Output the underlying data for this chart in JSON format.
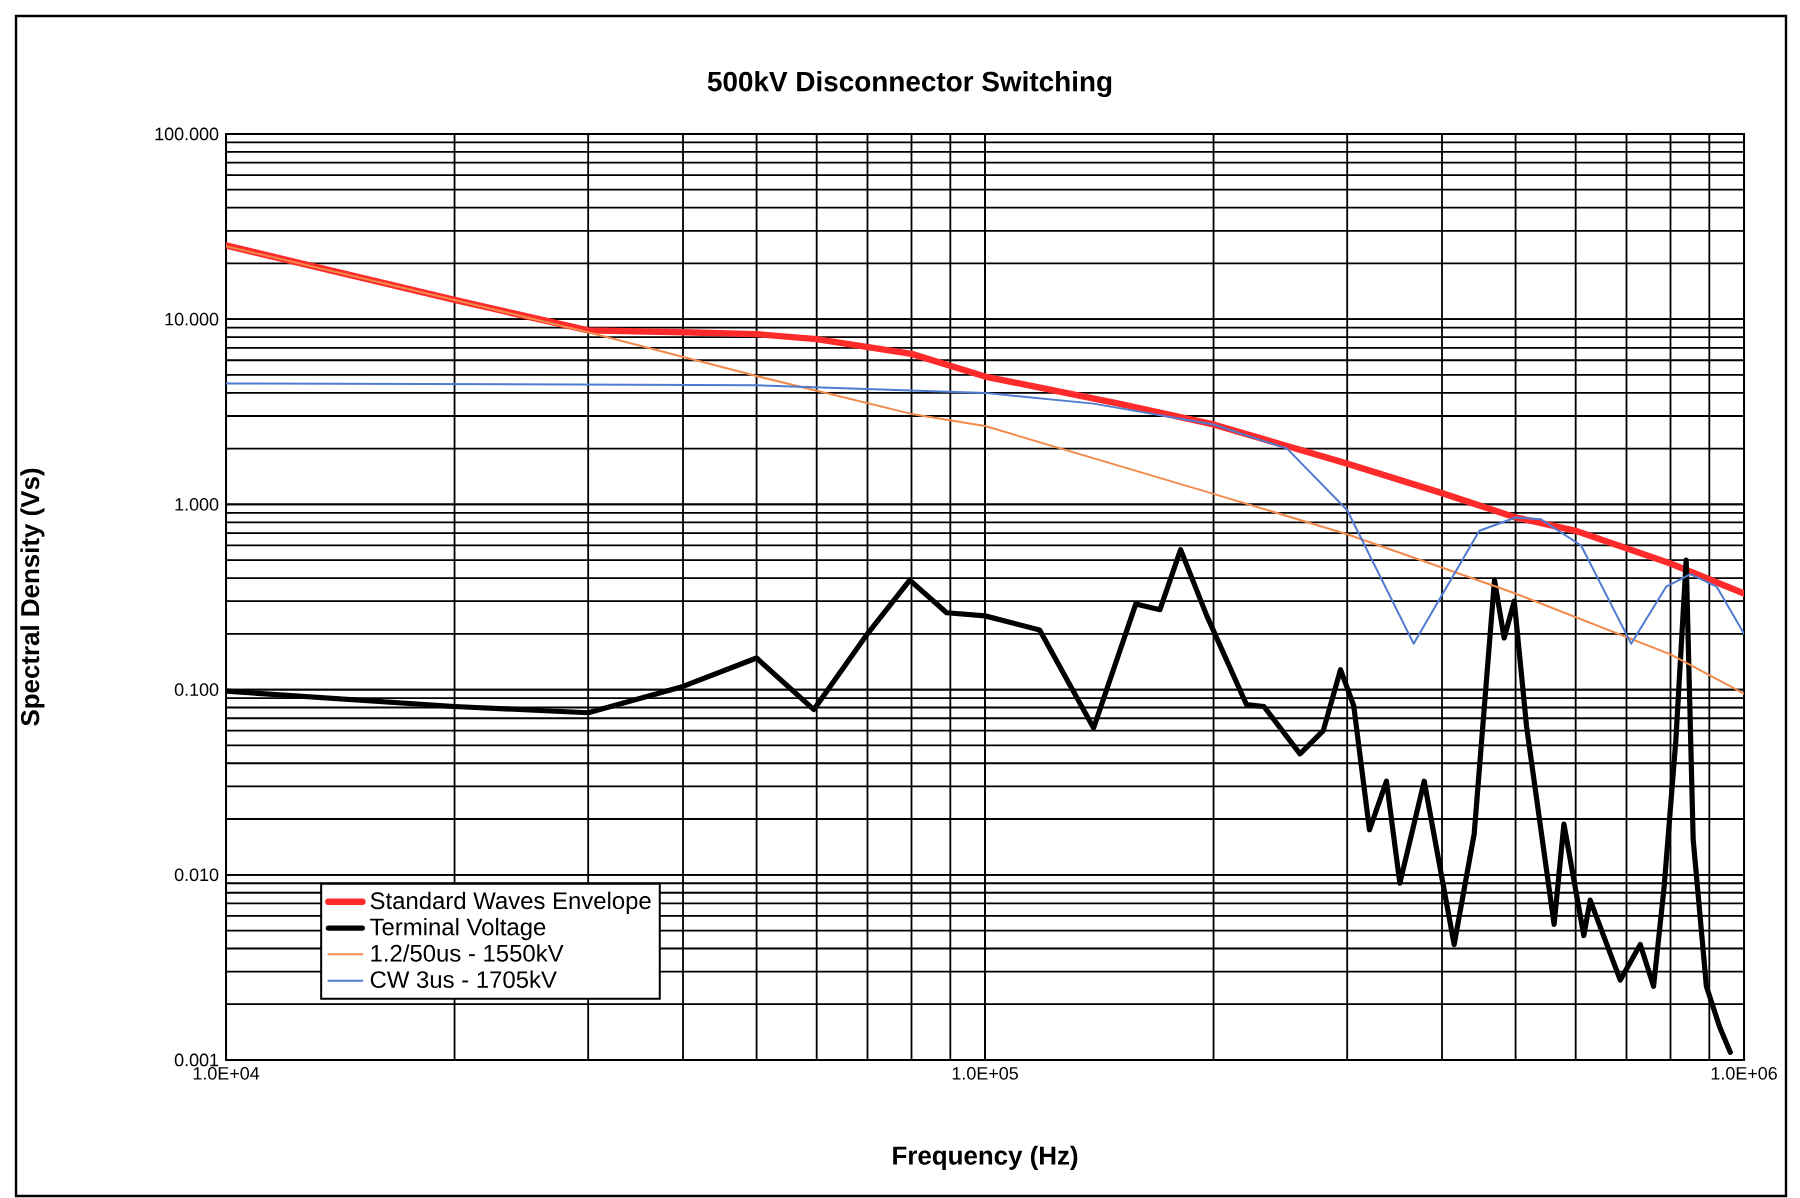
{
  "chart_data": {
    "type": "line",
    "title": "500kV Disconnector Switching",
    "xlabel": "Frequency (Hz)",
    "ylabel": "Spectral Density (Vs)",
    "log": "xy",
    "grid": true,
    "legend": "bottom left",
    "marker": "none",
    "xlim": [
      10000,
      1000000
    ],
    "ylim": [
      0.001,
      100
    ],
    "xticks": [
      {
        "value": 10000,
        "label": "1.0E+04"
      },
      {
        "value": 100000,
        "label": "1.0E+05"
      },
      {
        "value": 1000000,
        "label": "1.0E+06"
      }
    ],
    "yticks": [
      {
        "value": 0.001,
        "label": "0.001"
      },
      {
        "value": 0.01,
        "label": "0.010"
      },
      {
        "value": 0.1,
        "label": "0.100"
      },
      {
        "value": 1,
        "label": "1.000"
      },
      {
        "value": 10,
        "label": "10.000"
      },
      {
        "value": 100,
        "label": "100.000"
      }
    ],
    "series": [
      {
        "name": "Standard Waves Envelope",
        "color": "#ff2a2a",
        "x": [
          10000,
          20000,
          30000,
          40000,
          50000,
          60000,
          80000,
          100000,
          150000,
          200000,
          300000,
          400000,
          500000,
          600000,
          800000,
          1000000
        ],
        "values": [
          25,
          12.7,
          8.7,
          8.5,
          8.3,
          7.8,
          6.5,
          4.9,
          3.5,
          2.7,
          1.66,
          1.15,
          0.85,
          0.72,
          0.48,
          0.33
        ]
      },
      {
        "name": "Terminal Voltage",
        "color": "#000000",
        "x": [
          10000,
          20000,
          30000,
          40000,
          50000,
          59500,
          70000,
          79600,
          89000,
          100000,
          118000,
          139000,
          158000,
          170000,
          181000,
          196000,
          221000,
          233000,
          260000,
          279000,
          294000,
          306000,
          321000,
          338000,
          352000,
          379000,
          415000,
          441000,
          469000,
          483000,
          498000,
          517000,
          562000,
          579000,
          615000,
          627000,
          687000,
          730000,
          760000,
          785000,
          813000,
          839000,
          857000,
          892000,
          929000,
          959000
        ],
        "values": [
          0.098,
          0.081,
          0.075,
          0.104,
          0.148,
          0.078,
          0.2,
          0.39,
          0.26,
          0.25,
          0.21,
          0.062,
          0.29,
          0.27,
          0.57,
          0.25,
          0.083,
          0.081,
          0.045,
          0.06,
          0.128,
          0.082,
          0.0175,
          0.032,
          0.009,
          0.032,
          0.0042,
          0.0166,
          0.39,
          0.19,
          0.3,
          0.063,
          0.0054,
          0.0188,
          0.0047,
          0.0073,
          0.0027,
          0.0042,
          0.0025,
          0.0087,
          0.053,
          0.5,
          0.0155,
          0.0025,
          0.0015,
          0.0011
        ]
      },
      {
        "name": "1.2/50us - 1550kV",
        "color": "#f28a4c",
        "x": [
          10000,
          20000,
          30000,
          50000,
          80000,
          100000,
          200000,
          300000,
          500000,
          800000,
          1000000
        ],
        "values": [
          24.8,
          12.7,
          8.5,
          4.93,
          3.08,
          2.65,
          1.14,
          0.69,
          0.33,
          0.155,
          0.095
        ]
      },
      {
        "name": "CW 3us - 1705kV",
        "color": "#4f7bd0",
        "x": [
          10000,
          50000,
          100000,
          139000,
          200000,
          250000,
          300000,
          367000,
          448000,
          500000,
          540000,
          610000,
          710000,
          790000,
          850000,
          920000,
          1000000
        ],
        "values": [
          4.5,
          4.4,
          4.0,
          3.5,
          2.7,
          2.0,
          0.93,
          0.177,
          0.72,
          0.85,
          0.83,
          0.6,
          0.177,
          0.36,
          0.42,
          0.36,
          0.2
        ]
      }
    ]
  }
}
